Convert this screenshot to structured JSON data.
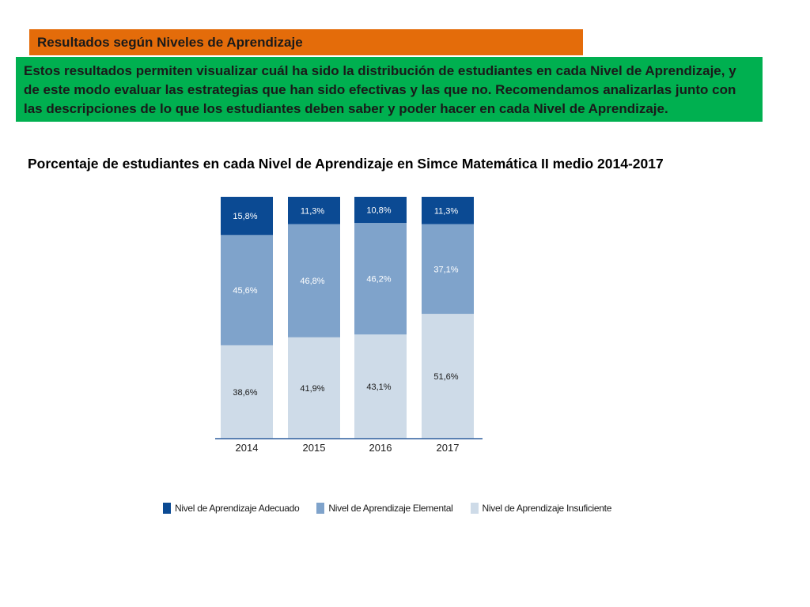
{
  "header": {
    "title": "Resultados según Niveles de Aprendizaje",
    "description": "Estos resultados permiten visualizar cuál ha sido la distribución de estudiantes en cada Nivel de Aprendizaje, y de este modo evaluar las estrategias que han sido efectivas y las que no. Recomendamos analizarlas junto con las descripciones de lo que los estudiantes deben saber y poder hacer en cada Nivel de Aprendizaje."
  },
  "colors": {
    "header_bar": "#e46c0a",
    "description_box": "#00b050",
    "adecuado": "#0b4a93",
    "elemental": "#7fa3cb",
    "insuficiente": "#cedbe8",
    "axis": "#2f5f9e"
  },
  "chart_data": {
    "type": "bar",
    "stacked": true,
    "title": "Porcentaje de estudiantes en cada Nivel de Aprendizaje en Simce Matemática II medio 2014-2017",
    "categories": [
      "2014",
      "2015",
      "2016",
      "2017"
    ],
    "series": [
      {
        "name": "Nivel de Aprendizaje Insuficiente",
        "values": [
          38.6,
          41.9,
          43.1,
          51.6
        ],
        "labels": [
          "38,6%",
          "41,9%",
          "43,1%",
          "51,6%"
        ]
      },
      {
        "name": "Nivel de Aprendizaje Elemental",
        "values": [
          45.6,
          46.8,
          46.2,
          37.1
        ],
        "labels": [
          "45,6%",
          "46,8%",
          "46,2%",
          "37,1%"
        ]
      },
      {
        "name": "Nivel de Aprendizaje Adecuado",
        "values": [
          15.8,
          11.3,
          10.8,
          11.3
        ],
        "labels": [
          "15,8%",
          "11,3%",
          "10,8%",
          "11,3%"
        ]
      }
    ],
    "ylim": [
      0,
      100
    ],
    "grid": false,
    "legend_position": "bottom",
    "legend": [
      "Nivel de Aprendizaje Adecuado",
      "Nivel de Aprendizaje Elemental",
      "Nivel de Aprendizaje Insuficiente"
    ]
  }
}
